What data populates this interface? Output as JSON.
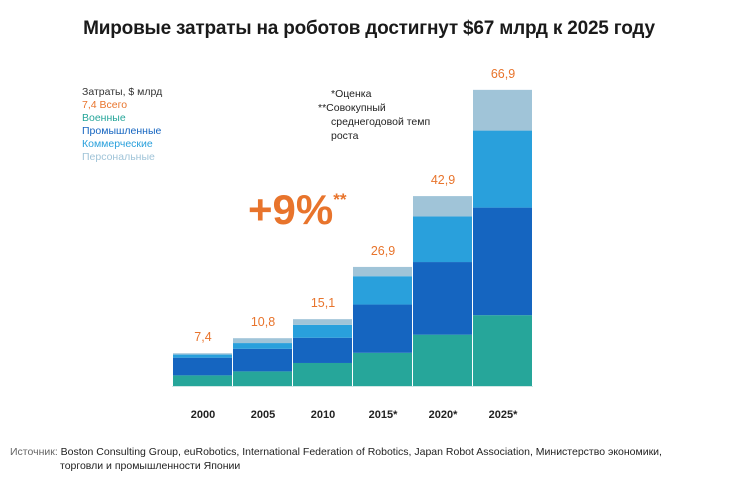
{
  "title": "Мировые затраты на роботов достигнут $67 млрд к 2025 году",
  "legend": {
    "title": "Затраты, $ млрд",
    "total_value": "7,4",
    "total_label": "Всего",
    "items": [
      {
        "label": "Военные",
        "color": "#26a69a"
      },
      {
        "label": "Промышленные",
        "color": "#1565c0"
      },
      {
        "label": "Коммерческие",
        "color": "#29a0dc"
      },
      {
        "label": "Персональные",
        "color": "#a0c4d8"
      }
    ]
  },
  "notes": {
    "estimate": "*Оценка",
    "cagr_prefix": "**Совокупный",
    "cagr_line2": "среднегодовой темп",
    "cagr_line3": "роста"
  },
  "cagr": {
    "value": "+9%",
    "mark": "**"
  },
  "source": {
    "label": "Источник:",
    "line1": "Boston Consulting Group, euRobotics, International Federation of Robotics, Japan Robot Association, Министерство экономики,",
    "line2": "торговли и промышленности Японии"
  },
  "colors": {
    "accent": "#e8742c",
    "title": "#1a1a1a"
  },
  "chart_data": {
    "type": "bar",
    "stacked": true,
    "categories": [
      "2000",
      "2005",
      "2010",
      "2015*",
      "2020*",
      "2025*"
    ],
    "series": [
      {
        "name": "Военные",
        "color": "#26a69a",
        "values": [
          2.4,
          3.3,
          5.2,
          7.5,
          11.6,
          16.0
        ]
      },
      {
        "name": "Промышленные",
        "color": "#1565c0",
        "values": [
          4.0,
          5.1,
          5.7,
          10.9,
          16.4,
          24.3
        ]
      },
      {
        "name": "Коммерческие",
        "color": "#29a0dc",
        "values": [
          0.7,
          1.3,
          2.9,
          6.4,
          10.3,
          17.4
        ]
      },
      {
        "name": "Персональные",
        "color": "#a0c4d8",
        "values": [
          0.3,
          1.1,
          1.3,
          2.1,
          4.6,
          9.2
        ]
      }
    ],
    "totals": [
      "7,4",
      "10,8",
      "15,1",
      "26,9",
      "42,9",
      "66,9"
    ],
    "ylim": [
      0,
      75
    ],
    "grid": false
  }
}
